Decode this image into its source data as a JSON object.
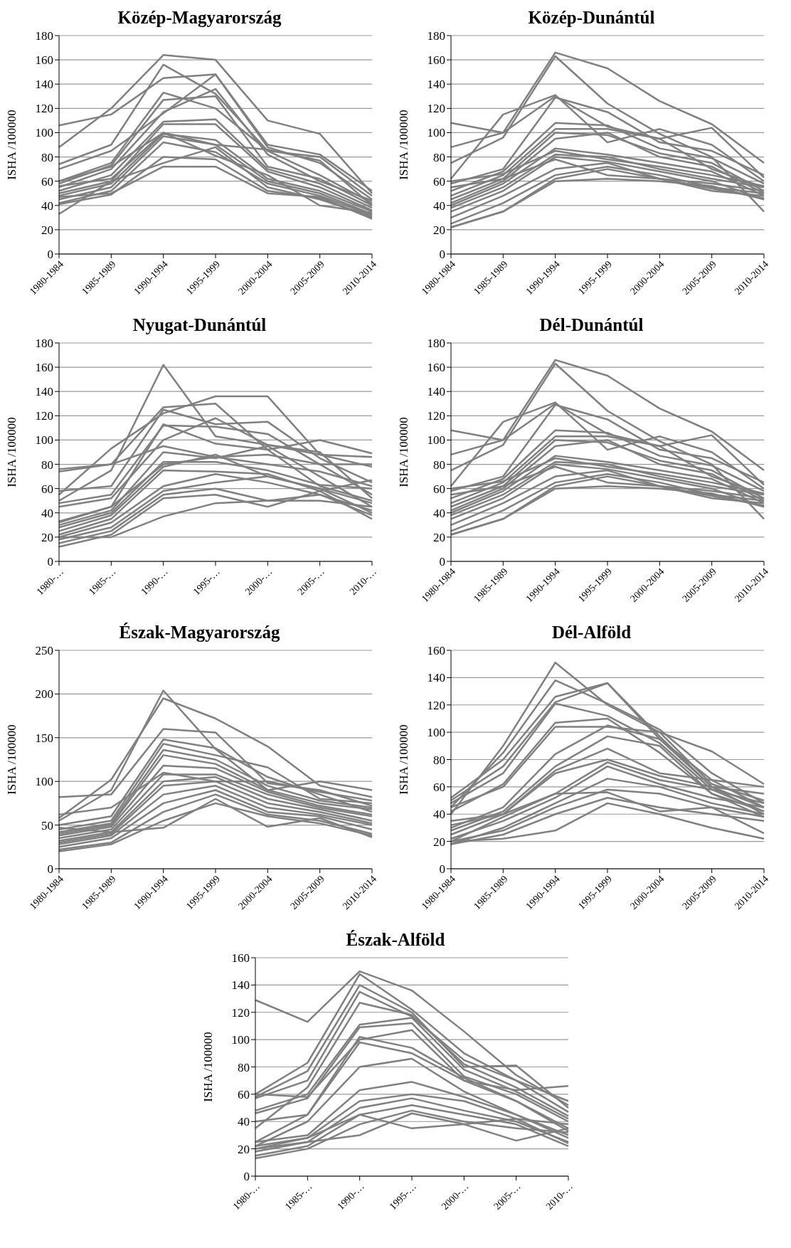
{
  "chart_data": [
    {
      "type": "line",
      "title": "Közép-Magyarország",
      "ylabel": "ISHA /100000",
      "categories": [
        "1980-1984",
        "1985-1989",
        "1990-1994",
        "1995-1999",
        "2000-2004",
        "2005-2009",
        "2010-2014"
      ],
      "ylim": [
        0,
        180
      ],
      "yticks": [
        0,
        20,
        40,
        60,
        80,
        100,
        120,
        140,
        160,
        180
      ],
      "grid": "y",
      "legend": false,
      "marker": "none",
      "line_style": "solid",
      "series": [
        {
          "color": "#808080",
          "values": [
            88,
            120,
            164,
            160,
            110,
            99,
            50
          ]
        },
        {
          "color": "#808080",
          "values": [
            106,
            115,
            145,
            148,
            90,
            82,
            52
          ]
        },
        {
          "color": "#808080",
          "values": [
            74,
            90,
            156,
            132,
            85,
            80,
            48
          ]
        },
        {
          "color": "#808080",
          "values": [
            70,
            85,
            116,
            148,
            88,
            75,
            45
          ]
        },
        {
          "color": "#808080",
          "values": [
            60,
            75,
            133,
            120,
            85,
            65,
            42
          ]
        },
        {
          "color": "#808080",
          "values": [
            58,
            73,
            127,
            130,
            72,
            62,
            40
          ]
        },
        {
          "color": "#808080",
          "values": [
            55,
            70,
            117,
            136,
            82,
            60,
            44
          ]
        },
        {
          "color": "#808080",
          "values": [
            52,
            65,
            109,
            111,
            70,
            58,
            38
          ]
        },
        {
          "color": "#808080",
          "values": [
            50,
            60,
            107,
            107,
            68,
            55,
            36
          ]
        },
        {
          "color": "#808080",
          "values": [
            48,
            58,
            99,
            94,
            62,
            52,
            35
          ]
        },
        {
          "color": "#808080",
          "values": [
            45,
            55,
            97,
            90,
            60,
            50,
            33
          ]
        },
        {
          "color": "#808080",
          "values": [
            42,
            52,
            92,
            84,
            58,
            48,
            32
          ]
        },
        {
          "color": "#808080",
          "values": [
            41,
            49,
            80,
            78,
            52,
            46,
            30
          ]
        },
        {
          "color": "#808080",
          "values": [
            33,
            60,
            75,
            88,
            55,
            45,
            31
          ]
        },
        {
          "color": "#808080",
          "values": [
            56,
            62,
            100,
            81,
            65,
            40,
            34
          ]
        },
        {
          "color": "#808080",
          "values": [
            47,
            50,
            72,
            72,
            50,
            47,
            29
          ]
        },
        {
          "color": "#808080",
          "values": [
            60,
            72,
            100,
            90,
            86,
            77,
            40
          ]
        }
      ]
    },
    {
      "type": "line",
      "title": "Közép-Dunántúl",
      "ylabel": "ISHA /100000",
      "categories": [
        "1980-1984",
        "1985-1989",
        "1990-1994",
        "1995-1999",
        "2000-2004",
        "2005-2009",
        "2010-2014"
      ],
      "ylim": [
        0,
        180
      ],
      "yticks": [
        0,
        20,
        40,
        60,
        80,
        100,
        120,
        140,
        160,
        180
      ],
      "grid": "y",
      "legend": false,
      "marker": "none",
      "line_style": "solid",
      "series": [
        {
          "color": "#808080",
          "values": [
            88,
            100,
            166,
            153,
            126,
            107,
            75
          ]
        },
        {
          "color": "#808080",
          "values": [
            75,
            96,
            163,
            124,
            99,
            80,
            35
          ]
        },
        {
          "color": "#808080",
          "values": [
            108,
            100,
            130,
            105,
            95,
            104,
            63
          ]
        },
        {
          "color": "#808080",
          "values": [
            62,
            115,
            131,
            92,
            103,
            90,
            60
          ]
        },
        {
          "color": "#808080",
          "values": [
            58,
            70,
            129,
            117,
            92,
            85,
            65
          ]
        },
        {
          "color": "#808080",
          "values": [
            52,
            68,
            108,
            106,
            87,
            79,
            58
          ]
        },
        {
          "color": "#808080",
          "values": [
            48,
            65,
            103,
            103,
            95,
            70,
            55
          ]
        },
        {
          "color": "#808080",
          "values": [
            45,
            62,
            100,
            98,
            83,
            75,
            52
          ]
        },
        {
          "color": "#808080",
          "values": [
            42,
            60,
            95,
            100,
            80,
            72,
            50
          ]
        },
        {
          "color": "#808080",
          "values": [
            40,
            58,
            87,
            82,
            75,
            68,
            48
          ]
        },
        {
          "color": "#808080",
          "values": [
            38,
            55,
            82,
            80,
            70,
            62,
            55
          ]
        },
        {
          "color": "#808080",
          "values": [
            35,
            52,
            80,
            76,
            68,
            60,
            45
          ]
        },
        {
          "color": "#808080",
          "values": [
            30,
            48,
            70,
            75,
            62,
            58,
            52
          ]
        },
        {
          "color": "#808080",
          "values": [
            25,
            42,
            65,
            72,
            65,
            55,
            50
          ]
        },
        {
          "color": "#808080",
          "values": [
            22,
            35,
            62,
            70,
            62,
            52,
            48
          ]
        },
        {
          "color": "#808080",
          "values": [
            22,
            35,
            60,
            62,
            60,
            56,
            45
          ]
        },
        {
          "color": "#808080",
          "values": [
            55,
            62,
            78,
            65,
            62,
            54,
            46
          ]
        },
        {
          "color": "#808080",
          "values": [
            60,
            66,
            85,
            78,
            72,
            65,
            56
          ]
        }
      ]
    },
    {
      "type": "line",
      "title": "Nyugat-Dunántúl",
      "ylabel": "ISHA /100000",
      "categories": [
        "1980-…",
        "1985-…",
        "1990-…",
        "1995-…",
        "2000-…",
        "2005-…",
        "2010-…"
      ],
      "ylim": [
        0,
        180
      ],
      "yticks": [
        0,
        20,
        40,
        60,
        80,
        100,
        120,
        140,
        160,
        180
      ],
      "grid": "y",
      "legend": false,
      "marker": "none",
      "line_style": "solid",
      "series": [
        {
          "color": "#808080",
          "values": [
            50,
            75,
            162,
            103,
            96,
            90,
            52
          ]
        },
        {
          "color": "#808080",
          "values": [
            74,
            80,
            127,
            130,
            92,
            100,
            89
          ]
        },
        {
          "color": "#808080",
          "values": [
            55,
            93,
            122,
            136,
            136,
            88,
            78
          ]
        },
        {
          "color": "#808080",
          "values": [
            58,
            62,
            125,
            113,
            115,
            85,
            65
          ]
        },
        {
          "color": "#808080",
          "values": [
            48,
            55,
            112,
            111,
            105,
            80,
            55
          ]
        },
        {
          "color": "#808080",
          "values": [
            45,
            52,
            100,
            118,
            96,
            88,
            86
          ]
        },
        {
          "color": "#808080",
          "values": [
            76,
            80,
            95,
            86,
            88,
            80,
            80
          ]
        },
        {
          "color": "#808080",
          "values": [
            32,
            45,
            113,
            97,
            92,
            62,
            50
          ]
        },
        {
          "color": "#808080",
          "values": [
            30,
            42,
            90,
            85,
            95,
            70,
            45
          ]
        },
        {
          "color": "#808080",
          "values": [
            28,
            40,
            82,
            82,
            75,
            63,
            60
          ]
        },
        {
          "color": "#808080",
          "values": [
            25,
            38,
            78,
            88,
            70,
            60,
            48
          ]
        },
        {
          "color": "#808080",
          "values": [
            22,
            35,
            75,
            74,
            72,
            58,
            67
          ]
        },
        {
          "color": "#808080",
          "values": [
            20,
            32,
            62,
            72,
            65,
            55,
            42
          ]
        },
        {
          "color": "#808080",
          "values": [
            18,
            28,
            58,
            65,
            70,
            60,
            40
          ]
        },
        {
          "color": "#808080",
          "values": [
            15,
            25,
            55,
            60,
            50,
            55,
            38
          ]
        },
        {
          "color": "#808080",
          "values": [
            12,
            22,
            52,
            55,
            45,
            58,
            35
          ]
        },
        {
          "color": "#808080",
          "values": [
            20,
            20,
            37,
            48,
            50,
            50,
            45
          ]
        },
        {
          "color": "#808080",
          "values": [
            33,
            45,
            80,
            86,
            80,
            74,
            62
          ]
        }
      ]
    },
    {
      "type": "line",
      "title": "Dél-Dunántúl",
      "ylabel": "ISHA /100000",
      "categories": [
        "1980-1984",
        "1985-1989",
        "1990-1994",
        "1995-1999",
        "2000-2004",
        "2005-2009",
        "2010-2014"
      ],
      "ylim": [
        0,
        180
      ],
      "yticks": [
        0,
        20,
        40,
        60,
        80,
        100,
        120,
        140,
        160,
        180
      ],
      "grid": "y",
      "legend": false,
      "marker": "none",
      "line_style": "solid",
      "series": [
        {
          "color": "#808080",
          "values": [
            88,
            100,
            166,
            153,
            126,
            107,
            75
          ]
        },
        {
          "color": "#808080",
          "values": [
            75,
            96,
            163,
            124,
            99,
            80,
            35
          ]
        },
        {
          "color": "#808080",
          "values": [
            108,
            100,
            130,
            105,
            95,
            104,
            63
          ]
        },
        {
          "color": "#808080",
          "values": [
            62,
            115,
            131,
            92,
            103,
            90,
            60
          ]
        },
        {
          "color": "#808080",
          "values": [
            58,
            70,
            129,
            117,
            92,
            85,
            65
          ]
        },
        {
          "color": "#808080",
          "values": [
            52,
            68,
            108,
            106,
            87,
            79,
            58
          ]
        },
        {
          "color": "#808080",
          "values": [
            48,
            65,
            103,
            103,
            95,
            70,
            55
          ]
        },
        {
          "color": "#808080",
          "values": [
            45,
            62,
            100,
            98,
            83,
            75,
            52
          ]
        },
        {
          "color": "#808080",
          "values": [
            42,
            60,
            95,
            100,
            80,
            72,
            50
          ]
        },
        {
          "color": "#808080",
          "values": [
            40,
            58,
            87,
            82,
            75,
            68,
            48
          ]
        },
        {
          "color": "#808080",
          "values": [
            38,
            55,
            82,
            80,
            70,
            62,
            55
          ]
        },
        {
          "color": "#808080",
          "values": [
            35,
            52,
            80,
            76,
            68,
            60,
            45
          ]
        },
        {
          "color": "#808080",
          "values": [
            30,
            48,
            70,
            75,
            62,
            58,
            52
          ]
        },
        {
          "color": "#808080",
          "values": [
            25,
            42,
            65,
            72,
            65,
            55,
            50
          ]
        },
        {
          "color": "#808080",
          "values": [
            22,
            35,
            62,
            70,
            62,
            52,
            48
          ]
        },
        {
          "color": "#808080",
          "values": [
            22,
            35,
            60,
            62,
            60,
            56,
            45
          ]
        },
        {
          "color": "#808080",
          "values": [
            55,
            62,
            78,
            65,
            62,
            54,
            46
          ]
        },
        {
          "color": "#808080",
          "values": [
            60,
            66,
            85,
            78,
            72,
            65,
            56
          ]
        }
      ]
    },
    {
      "type": "line",
      "title": "Észak-Magyarország",
      "ylabel": "ISHA /100000",
      "categories": [
        "1980-1984",
        "1985-1989",
        "1990-1994",
        "1995-1999",
        "2000-2004",
        "2005-2009",
        "2010-2014"
      ],
      "ylim": [
        0,
        250
      ],
      "yticks": [
        0,
        50,
        100,
        150,
        200,
        250
      ],
      "grid": "y",
      "legend": false,
      "marker": "none",
      "line_style": "solid",
      "series": [
        {
          "color": "#808080",
          "values": [
            55,
            90,
            204,
            137,
            90,
            100,
            90
          ]
        },
        {
          "color": "#808080",
          "values": [
            58,
            102,
            195,
            172,
            140,
            95,
            82
          ]
        },
        {
          "color": "#808080",
          "values": [
            82,
            85,
            160,
            156,
            98,
            90,
            72
          ]
        },
        {
          "color": "#808080",
          "values": [
            50,
            60,
            148,
            138,
            105,
            85,
            65
          ]
        },
        {
          "color": "#808080",
          "values": [
            45,
            55,
            143,
            130,
            116,
            80,
            75
          ]
        },
        {
          "color": "#808080",
          "values": [
            42,
            52,
            136,
            125,
            95,
            78,
            70
          ]
        },
        {
          "color": "#808080",
          "values": [
            40,
            50,
            130,
            120,
            90,
            75,
            68
          ]
        },
        {
          "color": "#808080",
          "values": [
            38,
            48,
            118,
            115,
            88,
            72,
            62
          ]
        },
        {
          "color": "#808080",
          "values": [
            35,
            45,
            108,
            108,
            85,
            70,
            60
          ]
        },
        {
          "color": "#808080",
          "values": [
            32,
            42,
            100,
            105,
            80,
            68,
            55
          ]
        },
        {
          "color": "#808080",
          "values": [
            30,
            40,
            95,
            100,
            75,
            65,
            52
          ]
        },
        {
          "color": "#808080",
          "values": [
            28,
            38,
            85,
            95,
            70,
            62,
            50
          ]
        },
        {
          "color": "#808080",
          "values": [
            25,
            35,
            75,
            90,
            65,
            60,
            45
          ]
        },
        {
          "color": "#808080",
          "values": [
            22,
            30,
            65,
            85,
            62,
            55,
            40
          ]
        },
        {
          "color": "#808080",
          "values": [
            20,
            28,
            55,
            75,
            60,
            52,
            38
          ]
        },
        {
          "color": "#808080",
          "values": [
            47,
            42,
            47,
            80,
            48,
            58,
            36
          ]
        },
        {
          "color": "#808080",
          "values": [
            62,
            70,
            110,
            100,
            100,
            88,
            78
          ]
        }
      ]
    },
    {
      "type": "line",
      "title": "Dél-Alföld",
      "ylabel": "ISHA /100000",
      "categories": [
        "1980-1984",
        "1985-1989",
        "1990-1994",
        "1995-1999",
        "2000-2004",
        "2005-2009",
        "2010-2014"
      ],
      "ylim": [
        0,
        160
      ],
      "yticks": [
        0,
        20,
        40,
        60,
        80,
        100,
        120,
        140,
        160
      ],
      "grid": "y",
      "legend": false,
      "marker": "none",
      "line_style": "solid",
      "series": [
        {
          "color": "#808080",
          "values": [
            40,
            90,
            151,
            120,
            100,
            86,
            62
          ]
        },
        {
          "color": "#808080",
          "values": [
            45,
            85,
            138,
            121,
            102,
            70,
            48
          ]
        },
        {
          "color": "#808080",
          "values": [
            52,
            80,
            126,
            136,
            95,
            65,
            45
          ]
        },
        {
          "color": "#808080",
          "values": [
            50,
            75,
            122,
            136,
            97,
            60,
            40
          ]
        },
        {
          "color": "#808080",
          "values": [
            48,
            70,
            121,
            112,
            92,
            58,
            42
          ]
        },
        {
          "color": "#808080",
          "values": [
            42,
            62,
            107,
            110,
            85,
            55,
            38
          ]
        },
        {
          "color": "#808080",
          "values": [
            45,
            60,
            104,
            104,
            100,
            62,
            50
          ]
        },
        {
          "color": "#808080",
          "values": [
            30,
            45,
            84,
            105,
            95,
            60,
            45
          ]
        },
        {
          "color": "#808080",
          "values": [
            28,
            42,
            75,
            97,
            90,
            55,
            42
          ]
        },
        {
          "color": "#808080",
          "values": [
            25,
            40,
            72,
            88,
            70,
            65,
            60
          ]
        },
        {
          "color": "#808080",
          "values": [
            32,
            40,
            70,
            80,
            68,
            60,
            55
          ]
        },
        {
          "color": "#808080",
          "values": [
            20,
            38,
            55,
            78,
            65,
            58,
            48
          ]
        },
        {
          "color": "#808080",
          "values": [
            22,
            35,
            52,
            75,
            62,
            52,
            45
          ]
        },
        {
          "color": "#808080",
          "values": [
            18,
            30,
            48,
            66,
            60,
            48,
            40
          ]
        },
        {
          "color": "#808080",
          "values": [
            20,
            28,
            45,
            58,
            55,
            45,
            38
          ]
        },
        {
          "color": "#808080",
          "values": [
            18,
            25,
            40,
            52,
            45,
            40,
            35
          ]
        },
        {
          "color": "#808080",
          "values": [
            20,
            22,
            28,
            48,
            40,
            30,
            22
          ]
        },
        {
          "color": "#808080",
          "values": [
            35,
            40,
            55,
            56,
            42,
            45,
            26
          ]
        }
      ]
    },
    {
      "type": "line",
      "title": "Észak-Alföld",
      "ylabel": "ISHA /100000",
      "categories": [
        "1980-…",
        "1985-…",
        "1990-…",
        "1995-…",
        "2000-…",
        "2005-…",
        "2010-…"
      ],
      "ylim": [
        0,
        160
      ],
      "yticks": [
        0,
        20,
        40,
        60,
        80,
        100,
        120,
        140,
        160
      ],
      "grid": "y",
      "legend": false,
      "marker": "none",
      "line_style": "solid",
      "series": [
        {
          "color": "#808080",
          "values": [
            129,
            113,
            150,
            136,
            106,
            74,
            52
          ]
        },
        {
          "color": "#808080",
          "values": [
            60,
            83,
            148,
            122,
            90,
            70,
            55
          ]
        },
        {
          "color": "#808080",
          "values": [
            58,
            77,
            140,
            120,
            80,
            81,
            50
          ]
        },
        {
          "color": "#808080",
          "values": [
            57,
            70,
            135,
            117,
            85,
            70,
            47
          ]
        },
        {
          "color": "#808080",
          "values": [
            35,
            65,
            127,
            118,
            82,
            65,
            44
          ]
        },
        {
          "color": "#808080",
          "values": [
            48,
            60,
            111,
            116,
            78,
            62,
            42
          ]
        },
        {
          "color": "#808080",
          "values": [
            46,
            57,
            109,
            112,
            73,
            60,
            40
          ]
        },
        {
          "color": "#808080",
          "values": [
            60,
            58,
            100,
            107,
            70,
            63,
            66
          ]
        },
        {
          "color": "#808080",
          "values": [
            40,
            45,
            102,
            94,
            72,
            55,
            35
          ]
        },
        {
          "color": "#808080",
          "values": [
            25,
            45,
            98,
            90,
            70,
            55,
            33
          ]
        },
        {
          "color": "#808080",
          "values": [
            22,
            40,
            80,
            86,
            62,
            45,
            30
          ]
        },
        {
          "color": "#808080",
          "values": [
            25,
            30,
            63,
            69,
            58,
            45,
            28
          ]
        },
        {
          "color": "#808080",
          "values": [
            20,
            28,
            55,
            60,
            55,
            42,
            38
          ]
        },
        {
          "color": "#808080",
          "values": [
            18,
            25,
            50,
            57,
            48,
            40,
            25
          ]
        },
        {
          "color": "#808080",
          "values": [
            15,
            22,
            45,
            52,
            45,
            38,
            22
          ]
        },
        {
          "color": "#808080",
          "values": [
            13,
            20,
            38,
            48,
            40,
            35,
            32
          ]
        },
        {
          "color": "#808080",
          "values": [
            20,
            25,
            30,
            46,
            38,
            26,
            35
          ]
        },
        {
          "color": "#808080",
          "values": [
            22,
            28,
            45,
            35,
            38,
            42,
            24
          ]
        }
      ]
    }
  ]
}
